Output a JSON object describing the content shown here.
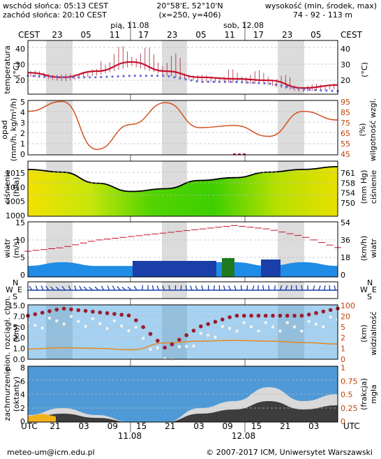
{
  "header": {
    "sunrise": "wschód słońca: 05:13 CEST",
    "sunset": "zachód słońca: 20:10 CEST",
    "coords": "20°58'E, 52°10'N",
    "grid": "(x=250, y=406)",
    "elev_label": "wysokość (min, środek, max)",
    "elev_values": "74 - 92 - 113 m"
  },
  "top_axis": {
    "tz": "CEST",
    "day1": "pią, 11.08",
    "day2": "sob, 12.08",
    "hours": [
      "23",
      "05",
      "11",
      "17",
      "23",
      "05",
      "11",
      "17",
      "23",
      "05"
    ]
  },
  "bottom_axis": {
    "tz": "UTC",
    "hours": [
      "21",
      "03",
      "09",
      "15",
      "21",
      "03",
      "09",
      "15",
      "21",
      "03"
    ],
    "day1": "11.08",
    "day2": "12.08"
  },
  "panels": {
    "temperature": {
      "label": "temperatura",
      "unit": "(°C)",
      "unit_r": "(°C)",
      "ticks": [
        "40",
        "30",
        "20"
      ]
    },
    "precip": {
      "label1": "opad",
      "label2": "(mm/h, kg/m²/h)",
      "label_r1": "wilgotność wzgl.",
      "label_r2": "(%)",
      "ticks_l": [
        "5",
        "4",
        "3",
        "2",
        "1",
        "0"
      ],
      "ticks_r": [
        "95",
        "85",
        "75",
        "65",
        "55",
        "45"
      ]
    },
    "pressure": {
      "label": "ciśnienie",
      "unit": "(hPa)",
      "label_r": "ciśnienie",
      "unit_r": "(mm Hg)",
      "ticks_l": [
        "1015",
        "1010",
        "1005",
        "1000"
      ],
      "ticks_r": [
        "761",
        "758",
        "754",
        "750"
      ]
    },
    "wind": {
      "label": "wiatr",
      "unit": "(m/s)",
      "label_r": "wiatr",
      "unit_r": "(km/h)",
      "ticks_l": [
        "15",
        "10",
        "5",
        "0"
      ],
      "ticks_r": [
        "54",
        "36",
        "18",
        "0"
      ]
    },
    "direction": {
      "n": "N",
      "s": "S",
      "w": "W",
      "e": "E"
    },
    "visibility": {
      "label1": "pion. rozciągł. chm.",
      "label2": "(km)",
      "label_r1": "widzialność",
      "label_r2": "(km)",
      "ticks_l": [
        "15.0",
        "7.0",
        "5.0",
        "2.0",
        "1.0",
        "0.0"
      ],
      "ticks_r": [
        "100",
        "20",
        "5",
        "2",
        "1",
        "0"
      ]
    },
    "clouds": {
      "label1": "zachmurzenie",
      "label2": "(oktanty)",
      "label_r1": "mgła",
      "label_r2": "(frakcja)",
      "ticks_l": [
        "8",
        "6",
        "4",
        "2",
        "0"
      ],
      "ticks_r": [
        "1",
        "0.75",
        "0.5",
        "0.25",
        "0"
      ]
    }
  },
  "footer": {
    "email": "meteo-um@icm.edu.pl",
    "copyright": "© 2007-2017 ICM, Uniwersytet Warszawski"
  },
  "chart_data": [
    {
      "type": "line",
      "title": "temperatura",
      "x": [
        "23",
        "05",
        "11",
        "17",
        "23",
        "05",
        "11",
        "17",
        "23",
        "05"
      ],
      "ylim": [
        10,
        45
      ],
      "series": [
        {
          "values": [
            24,
            21,
            25,
            31,
            25,
            21,
            20,
            19,
            14,
            16
          ]
        },
        {
          "values": [
            22,
            21,
            21,
            22,
            22,
            18,
            18,
            17,
            13,
            12
          ]
        }
      ]
    },
    {
      "type": "line",
      "title": "opad / wilgotność wzgl.",
      "x": [
        "23",
        "05",
        "11",
        "17",
        "23",
        "05",
        "11",
        "17",
        "23",
        "05"
      ],
      "ylim": [
        0,
        5
      ],
      "series": [
        {
          "values": [
            85,
            94,
            50,
            73,
            93,
            70,
            72,
            62,
            85,
            77
          ]
        }
      ]
    },
    {
      "type": "area",
      "title": "ciśnienie",
      "x": [
        "23",
        "05",
        "11",
        "17",
        "23",
        "05",
        "11",
        "17",
        "23",
        "05"
      ],
      "ylim": [
        1000,
        1020
      ],
      "series": [
        {
          "values": [
            1017,
            1016,
            1012,
            1009,
            1010,
            1013,
            1014,
            1016,
            1017,
            1018
          ]
        }
      ]
    },
    {
      "type": "line",
      "title": "wiatr",
      "x": [
        "23",
        "05",
        "11",
        "17",
        "23",
        "05",
        "11",
        "17",
        "23",
        "05"
      ],
      "ylim": [
        0,
        15
      ],
      "series": [
        {
          "values": [
            3,
            4,
            3,
            3,
            3,
            4,
            4,
            3,
            4,
            3
          ]
        },
        {
          "values": [
            7,
            8,
            10,
            11,
            12,
            13,
            14,
            13,
            11,
            8
          ]
        }
      ]
    },
    {
      "type": "scatter",
      "title": "pion. rozciągł. chm. / widzialność",
      "x": [
        "23",
        "05",
        "11",
        "17",
        "23",
        "05",
        "11",
        "17",
        "23",
        "05"
      ],
      "ylim": [
        0,
        15
      ],
      "series": [
        {
          "values": [
            12,
            14,
            13,
            12,
            3,
            9,
            12,
            12,
            12,
            14
          ]
        },
        {
          "values": [
            2.8,
            3.2,
            3.0,
            2.6,
            4.5,
            5.0,
            5.2,
            5.0,
            4.6,
            4.2
          ]
        }
      ]
    },
    {
      "type": "area",
      "title": "zachmurzenie",
      "x": [
        "21",
        "03",
        "09",
        "15",
        "21",
        "03",
        "09",
        "15",
        "21",
        "03"
      ],
      "ylim": [
        0,
        8
      ],
      "series": [
        {
          "values": [
            1,
            2,
            1,
            0,
            0,
            2,
            3,
            5,
            3,
            4
          ]
        }
      ]
    }
  ]
}
